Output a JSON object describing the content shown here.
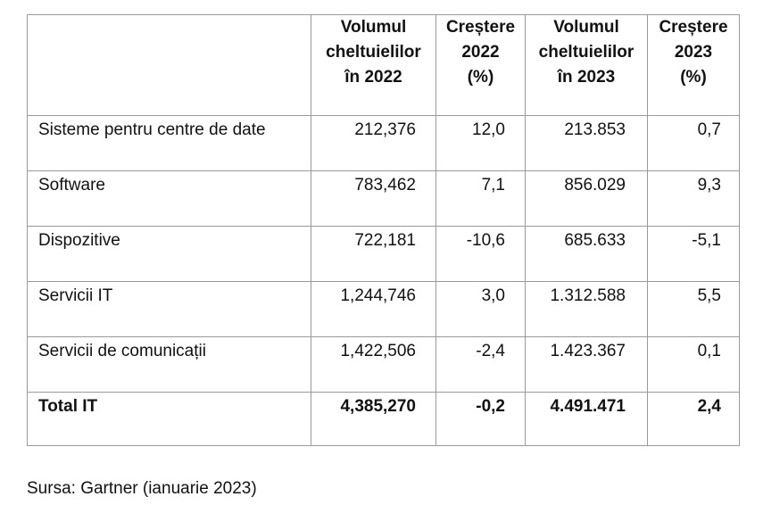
{
  "table": {
    "headers": [
      [],
      [
        "Volumul",
        "cheltuielilor",
        "în 2022"
      ],
      [
        "Creștere",
        "2022",
        "(%)"
      ],
      [
        "Volumul",
        "cheltuielilor",
        "în 2023"
      ],
      [
        "Creștere",
        "2023",
        "(%)"
      ]
    ],
    "rows": [
      {
        "label": "Sisteme pentru centre de date",
        "spend_2022": "212,376",
        "growth_2022": "12,0",
        "spend_2023": "213.853",
        "growth_2023": "0,7"
      },
      {
        "label": "Software",
        "spend_2022": "783,462",
        "growth_2022": "7,1",
        "spend_2023": "856.029",
        "growth_2023": "9,3"
      },
      {
        "label": "Dispozitive",
        "spend_2022": "722,181",
        "growth_2022": "-10,6",
        "spend_2023": "685.633",
        "growth_2023": "-5,1"
      },
      {
        "label": "Servicii IT",
        "spend_2022": "1,244,746",
        "growth_2022": "3,0",
        "spend_2023": "1.312.588",
        "growth_2023": "5,5"
      },
      {
        "label": "Servicii de comunicații",
        "spend_2022": "1,422,506",
        "growth_2022": "-2,4",
        "spend_2023": "1.423.367",
        "growth_2023": "0,1"
      }
    ],
    "total": {
      "label": "Total IT",
      "spend_2022": "4,385,270",
      "growth_2022": "-0,2",
      "spend_2023": "4.491.471",
      "growth_2023": "2,4"
    }
  },
  "source": "Sursa: Gartner (ianuarie 2023)"
}
